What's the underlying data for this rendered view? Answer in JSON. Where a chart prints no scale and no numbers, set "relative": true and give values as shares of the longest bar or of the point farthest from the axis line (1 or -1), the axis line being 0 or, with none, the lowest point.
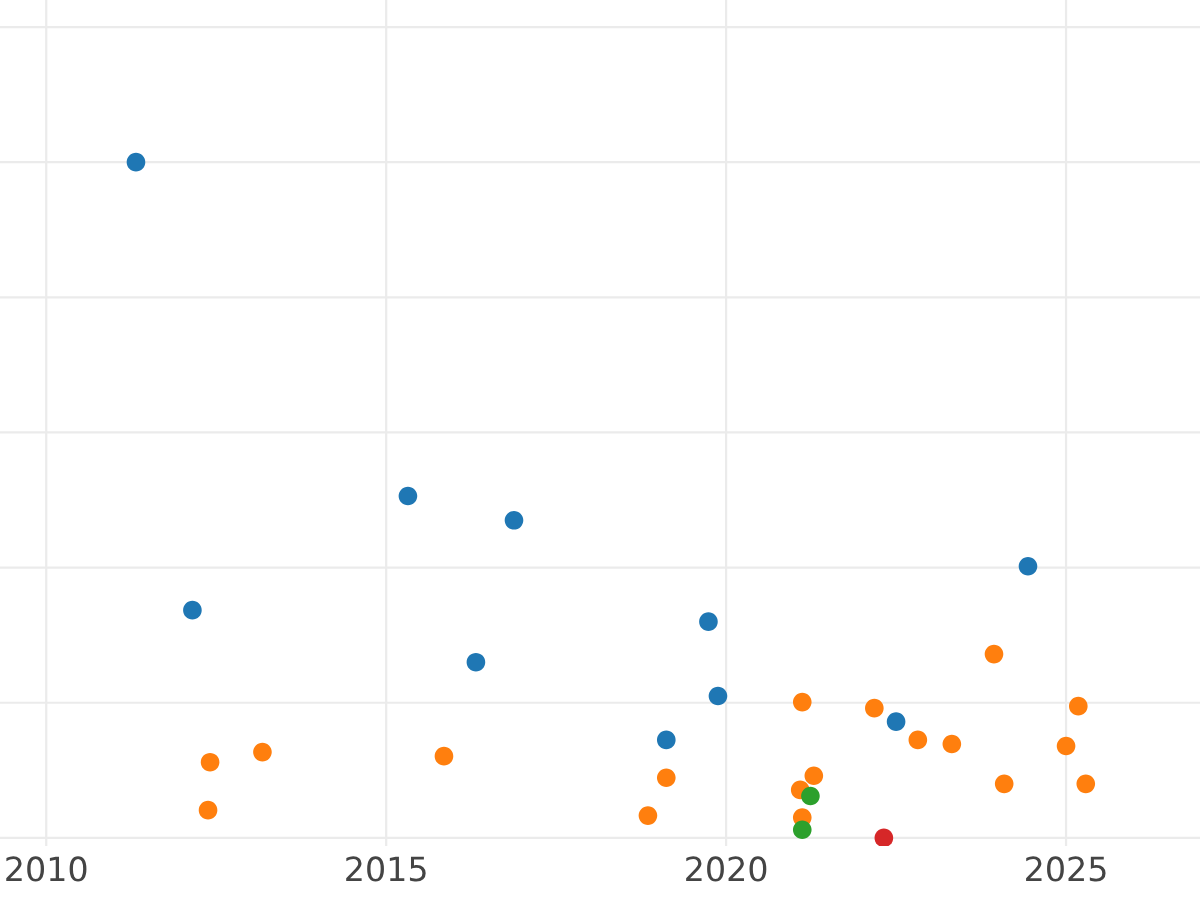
{
  "chart_data": {
    "type": "scatter",
    "relative": true,
    "grid": true,
    "marker": "circle",
    "xlim": [
      2009.32,
      2026.97
    ],
    "xticks": [
      2010,
      2015,
      2020,
      2025
    ],
    "tick_labels": "x",
    "series": [
      {
        "color": "#1f77b4",
        "x": [
          2011.32,
          2012.15,
          2015.32,
          2016.88,
          2016.32,
          2019.12,
          2019.74,
          2019.88,
          2022.5,
          2024.44
        ],
        "values": [
          1.0,
          0.337,
          0.506,
          0.47,
          0.26,
          0.145,
          0.32,
          0.21,
          0.172,
          0.402
        ]
      },
      {
        "color": "#ff7f0e",
        "x": [
          2012.41,
          2012.38,
          2013.18,
          2015.85,
          2018.85,
          2019.12,
          2021.12,
          2021.09,
          2021.29,
          2021.12,
          2022.18,
          2022.82,
          2023.32,
          2023.94,
          2024.09,
          2025.0,
          2025.18,
          2025.29
        ],
        "values": [
          0.112,
          0.041,
          0.127,
          0.121,
          0.033,
          0.089,
          0.201,
          0.071,
          0.092,
          0.03,
          0.192,
          0.145,
          0.139,
          0.272,
          0.08,
          0.136,
          0.195,
          0.08
        ]
      },
      {
        "color": "#2ca02c",
        "x": [
          2021.24,
          2021.12
        ],
        "values": [
          0.062,
          0.012
        ]
      },
      {
        "color": "#d62728",
        "x": [
          2022.32
        ],
        "values": [
          0.0
        ]
      }
    ]
  }
}
